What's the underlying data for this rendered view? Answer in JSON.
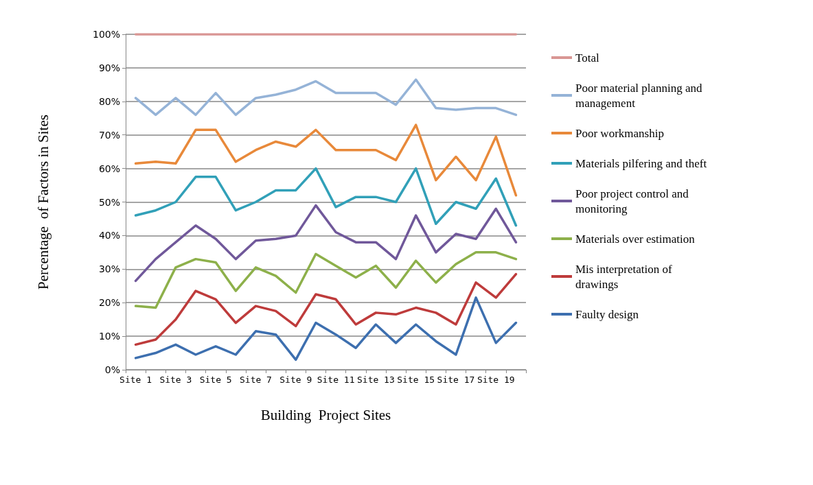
{
  "chart_data": {
    "type": "line",
    "xlabel": "Building  Project Sites",
    "ylabel": "Percentage  of Factors in Sites",
    "categories": [
      "Site 1",
      null,
      "Site 3",
      null,
      "Site 5",
      null,
      "Site 7",
      null,
      "Site 9",
      null,
      "Site 11",
      null,
      "Site 13",
      null,
      "Site 15",
      null,
      "Site 17",
      null,
      "Site 19",
      null
    ],
    "series": [
      {
        "name": "Total",
        "color": "#d99694",
        "values": [
          100,
          100,
          100,
          100,
          100,
          100,
          100,
          100,
          100,
          100,
          100,
          100,
          100,
          100,
          100,
          100,
          100,
          100,
          100,
          100
        ]
      },
      {
        "name": "Poor material planning and management",
        "color": "#95b3d7",
        "values": [
          81,
          76,
          81,
          76,
          82.5,
          76,
          81,
          82,
          83.5,
          86,
          82.5,
          82.5,
          82.5,
          79,
          86.5,
          78,
          77.5,
          78,
          78,
          76
        ]
      },
      {
        "name": "Poor workmanship",
        "color": "#e8893a",
        "values": [
          61.5,
          62,
          61.5,
          71.5,
          71.5,
          62,
          65.5,
          68,
          66.5,
          71.5,
          65.5,
          65.5,
          65.5,
          62.5,
          73,
          56.5,
          63.5,
          56.5,
          69.5,
          52
        ]
      },
      {
        "name": "Materials pilfering and theft",
        "color": "#31a0b8",
        "values": [
          46,
          47.5,
          50,
          57.5,
          57.5,
          47.5,
          50,
          53.5,
          53.5,
          60,
          48.5,
          51.5,
          51.5,
          50,
          60,
          43.5,
          50,
          48,
          57,
          43
        ]
      },
      {
        "name": "Poor project control and monitoring",
        "color": "#70589a",
        "values": [
          26.5,
          33,
          38,
          43,
          39,
          33,
          38.5,
          39,
          40,
          49,
          41,
          38,
          38,
          33,
          46,
          35,
          40.5,
          39,
          48,
          38
        ]
      },
      {
        "name": "Materials over estimation",
        "color": "#8db04a",
        "values": [
          19,
          18.5,
          30.5,
          33,
          32,
          23.5,
          30.5,
          28,
          23,
          34.5,
          31,
          27.5,
          31,
          24.5,
          32.5,
          26,
          31.5,
          35,
          35,
          33
        ]
      },
      {
        "name": "Mis interpretation of drawings",
        "color": "#be3b3b",
        "values": [
          7.5,
          9,
          15,
          23.5,
          21,
          14,
          19,
          17.5,
          13,
          22.5,
          21,
          13.5,
          17,
          16.5,
          18.5,
          17,
          13.5,
          26,
          21.5,
          28.5
        ]
      },
      {
        "name": "Faulty design",
        "color": "#3d6faf",
        "values": [
          3.5,
          5,
          7.5,
          4.5,
          7,
          4.5,
          11.5,
          10.5,
          3,
          14,
          10.5,
          6.5,
          13.5,
          8,
          13.5,
          8.5,
          4.5,
          21.5,
          8,
          14
        ]
      }
    ],
    "ylim": [
      0,
      100
    ],
    "yticks": [
      {
        "value": 0,
        "label": "0%"
      },
      {
        "value": 10,
        "label": "10%"
      },
      {
        "value": 20,
        "label": "20%"
      },
      {
        "value": 30,
        "label": "30%"
      },
      {
        "value": 40,
        "label": "40%"
      },
      {
        "value": 50,
        "label": "50%"
      },
      {
        "value": 60,
        "label": "60%"
      },
      {
        "value": 70,
        "label": "70%"
      },
      {
        "value": 80,
        "label": "80%"
      },
      {
        "value": 90,
        "label": "90%"
      },
      {
        "value": 100,
        "label": "100%"
      }
    ],
    "grid": "y",
    "legend": "right",
    "marker": "none",
    "line_style": "solid"
  }
}
